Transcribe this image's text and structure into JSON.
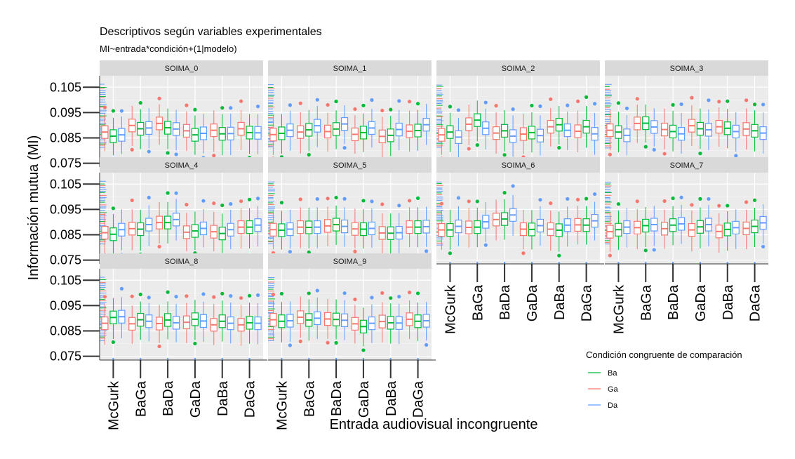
{
  "chart_data": {
    "type": "boxplot",
    "title": "Descriptivos según variables experimentales",
    "subtitle": "MI~entrada*condición+(1|modelo)",
    "xlabel": "Entrada audiovisual incongruente",
    "ylabel": "Información mutua (MI)",
    "categories": [
      "McGurk",
      "BaGa",
      "BaDa",
      "GaDa",
      "DaBa",
      "DaGa"
    ],
    "y_ticks": [
      "0.075",
      "0.085",
      "0.095",
      "0.105"
    ],
    "ylim": [
      0.0735,
      0.1095
    ],
    "legend": {
      "title": "Condición congruente de comparación",
      "position": "right-bottom",
      "entries": [
        "Ba",
        "Ga",
        "Da"
      ]
    },
    "colors": {
      "Ba": "#00BA38",
      "Ga": "#F8766D",
      "Da": "#619CFF"
    },
    "panels": [
      {
        "name": "SOIMA_0",
        "series": [
          {
            "name": "Ga",
            "medians": [
              0.0873,
              0.0899,
              0.0907,
              0.0878,
              0.088,
              0.0886
            ]
          },
          {
            "name": "Ba",
            "medians": [
              0.0857,
              0.0886,
              0.089,
              0.0862,
              0.0866,
              0.0871
            ]
          },
          {
            "name": "Da",
            "medians": [
              0.0862,
              0.0889,
              0.0885,
              0.0868,
              0.0867,
              0.087
            ]
          }
        ]
      },
      {
        "name": "SOIMA_1",
        "series": [
          {
            "name": "Ga",
            "medians": [
              0.0863,
              0.0873,
              0.0875,
              0.0864,
              0.0856,
              0.0876
            ]
          },
          {
            "name": "Ba",
            "medians": [
              0.0868,
              0.0882,
              0.0885,
              0.0871,
              0.086,
              0.0879
            ]
          },
          {
            "name": "Da",
            "medians": [
              0.088,
              0.0898,
              0.0905,
              0.0889,
              0.0883,
              0.0902
            ]
          }
        ]
      },
      {
        "name": "SOIMA_2",
        "series": [
          {
            "name": "Ga",
            "medians": [
              0.0862,
              0.0904,
              0.0869,
              0.0865,
              0.0894,
              0.0876
            ]
          },
          {
            "name": "Ba",
            "medians": [
              0.0873,
              0.092,
              0.0878,
              0.0871,
              0.0902,
              0.0894
            ]
          },
          {
            "name": "Da",
            "medians": [
              0.0853,
              0.0888,
              0.0857,
              0.0859,
              0.088,
              0.0866
            ]
          }
        ]
      },
      {
        "name": "SOIMA_3",
        "series": [
          {
            "name": "Ga",
            "medians": [
              0.088,
              0.0907,
              0.0883,
              0.0898,
              0.0894,
              0.0885
            ]
          },
          {
            "name": "Ba",
            "medians": [
              0.0873,
              0.0908,
              0.0875,
              0.0886,
              0.0888,
              0.0878
            ]
          },
          {
            "name": "Da",
            "medians": [
              0.086,
              0.0893,
              0.0866,
              0.0882,
              0.0875,
              0.0869
            ]
          }
        ]
      },
      {
        "name": "SOIMA_4",
        "series": [
          {
            "name": "Ga",
            "medians": [
              0.0858,
              0.0874,
              0.0898,
              0.086,
              0.0862,
              0.088
            ]
          },
          {
            "name": "Ba",
            "medians": [
              0.0852,
              0.0872,
              0.0898,
              0.0865,
              0.0855,
              0.088
            ]
          },
          {
            "name": "Da",
            "medians": [
              0.087,
              0.089,
              0.091,
              0.0875,
              0.087,
              0.0888
            ]
          }
        ]
      },
      {
        "name": "SOIMA_5",
        "series": [
          {
            "name": "Ga",
            "medians": [
              0.087,
              0.088,
              0.0885,
              0.0873,
              0.0857,
              0.088
            ]
          },
          {
            "name": "Ba",
            "medians": [
              0.0868,
              0.0879,
              0.089,
              0.0872,
              0.0856,
              0.088
            ]
          },
          {
            "name": "Da",
            "medians": [
              0.0872,
              0.088,
              0.0883,
              0.0875,
              0.0858,
              0.0882
            ]
          }
        ]
      },
      {
        "name": "SOIMA_6",
        "series": [
          {
            "name": "Ga",
            "medians": [
              0.0869,
              0.0879,
              0.091,
              0.0872,
              0.0872,
              0.0889
            ]
          },
          {
            "name": "Ba",
            "medians": [
              0.0869,
              0.088,
              0.0912,
              0.0871,
              0.0868,
              0.0888
            ]
          },
          {
            "name": "Da",
            "medians": [
              0.0883,
              0.0901,
              0.0928,
              0.0886,
              0.0888,
              0.0905
            ]
          }
        ]
      },
      {
        "name": "SOIMA_7",
        "series": [
          {
            "name": "Ga",
            "medians": [
              0.0862,
              0.0878,
              0.0874,
              0.0869,
              0.0863,
              0.0875
            ]
          },
          {
            "name": "Ba",
            "medians": [
              0.087,
              0.0886,
              0.0888,
              0.0881,
              0.0871,
              0.0883
            ]
          },
          {
            "name": "Da",
            "medians": [
              0.088,
              0.089,
              0.0893,
              0.089,
              0.0878,
              0.0897
            ]
          }
        ]
      },
      {
        "name": "SOIMA_8",
        "series": [
          {
            "name": "Ga",
            "medians": [
              0.088,
              0.0878,
              0.0879,
              0.0884,
              0.0874,
              0.0874
            ]
          },
          {
            "name": "Ba",
            "medians": [
              0.0903,
              0.0894,
              0.0893,
              0.0896,
              0.0888,
              0.0882
            ]
          },
          {
            "name": "Da",
            "medians": [
              0.0906,
              0.0888,
              0.0882,
              0.0889,
              0.088,
              0.088
            ]
          }
        ]
      },
      {
        "name": "SOIMA_9",
        "series": [
          {
            "name": "Ga",
            "medians": [
              0.0894,
              0.0904,
              0.0897,
              0.0878,
              0.0887,
              0.0896
            ]
          },
          {
            "name": "Ba",
            "medians": [
              0.0888,
              0.0893,
              0.0895,
              0.0867,
              0.0882,
              0.0888
            ]
          },
          {
            "name": "Da",
            "medians": [
              0.089,
              0.09,
              0.0892,
              0.088,
              0.0881,
              0.089
            ]
          }
        ]
      }
    ]
  }
}
